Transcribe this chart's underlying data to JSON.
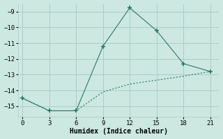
{
  "xlabel": "Humidex (Indice chaleur)",
  "line1_x": [
    0,
    3,
    6,
    9,
    12,
    15,
    18,
    21
  ],
  "line1_y": [
    -14.5,
    -15.3,
    -15.3,
    -11.2,
    -8.75,
    -10.2,
    -12.3,
    -12.8
  ],
  "line2_x": [
    0,
    3,
    6,
    9,
    12,
    15,
    18,
    21
  ],
  "line2_y": [
    -14.5,
    -15.3,
    -15.3,
    -14.1,
    -13.6,
    -13.35,
    -13.1,
    -12.8
  ],
  "line_color": "#2a7a6a",
  "bg_color": "#cce8e0",
  "plot_bg": "#cce8e0",
  "grid_color": "#aacccc",
  "xlim": [
    -0.5,
    22
  ],
  "ylim": [
    -15.7,
    -8.5
  ],
  "xticks": [
    0,
    3,
    6,
    9,
    12,
    15,
    18,
    21
  ],
  "yticks": [
    -15,
    -14,
    -13,
    -12,
    -11,
    -10,
    -9
  ],
  "marker": "+",
  "markersize": 5
}
